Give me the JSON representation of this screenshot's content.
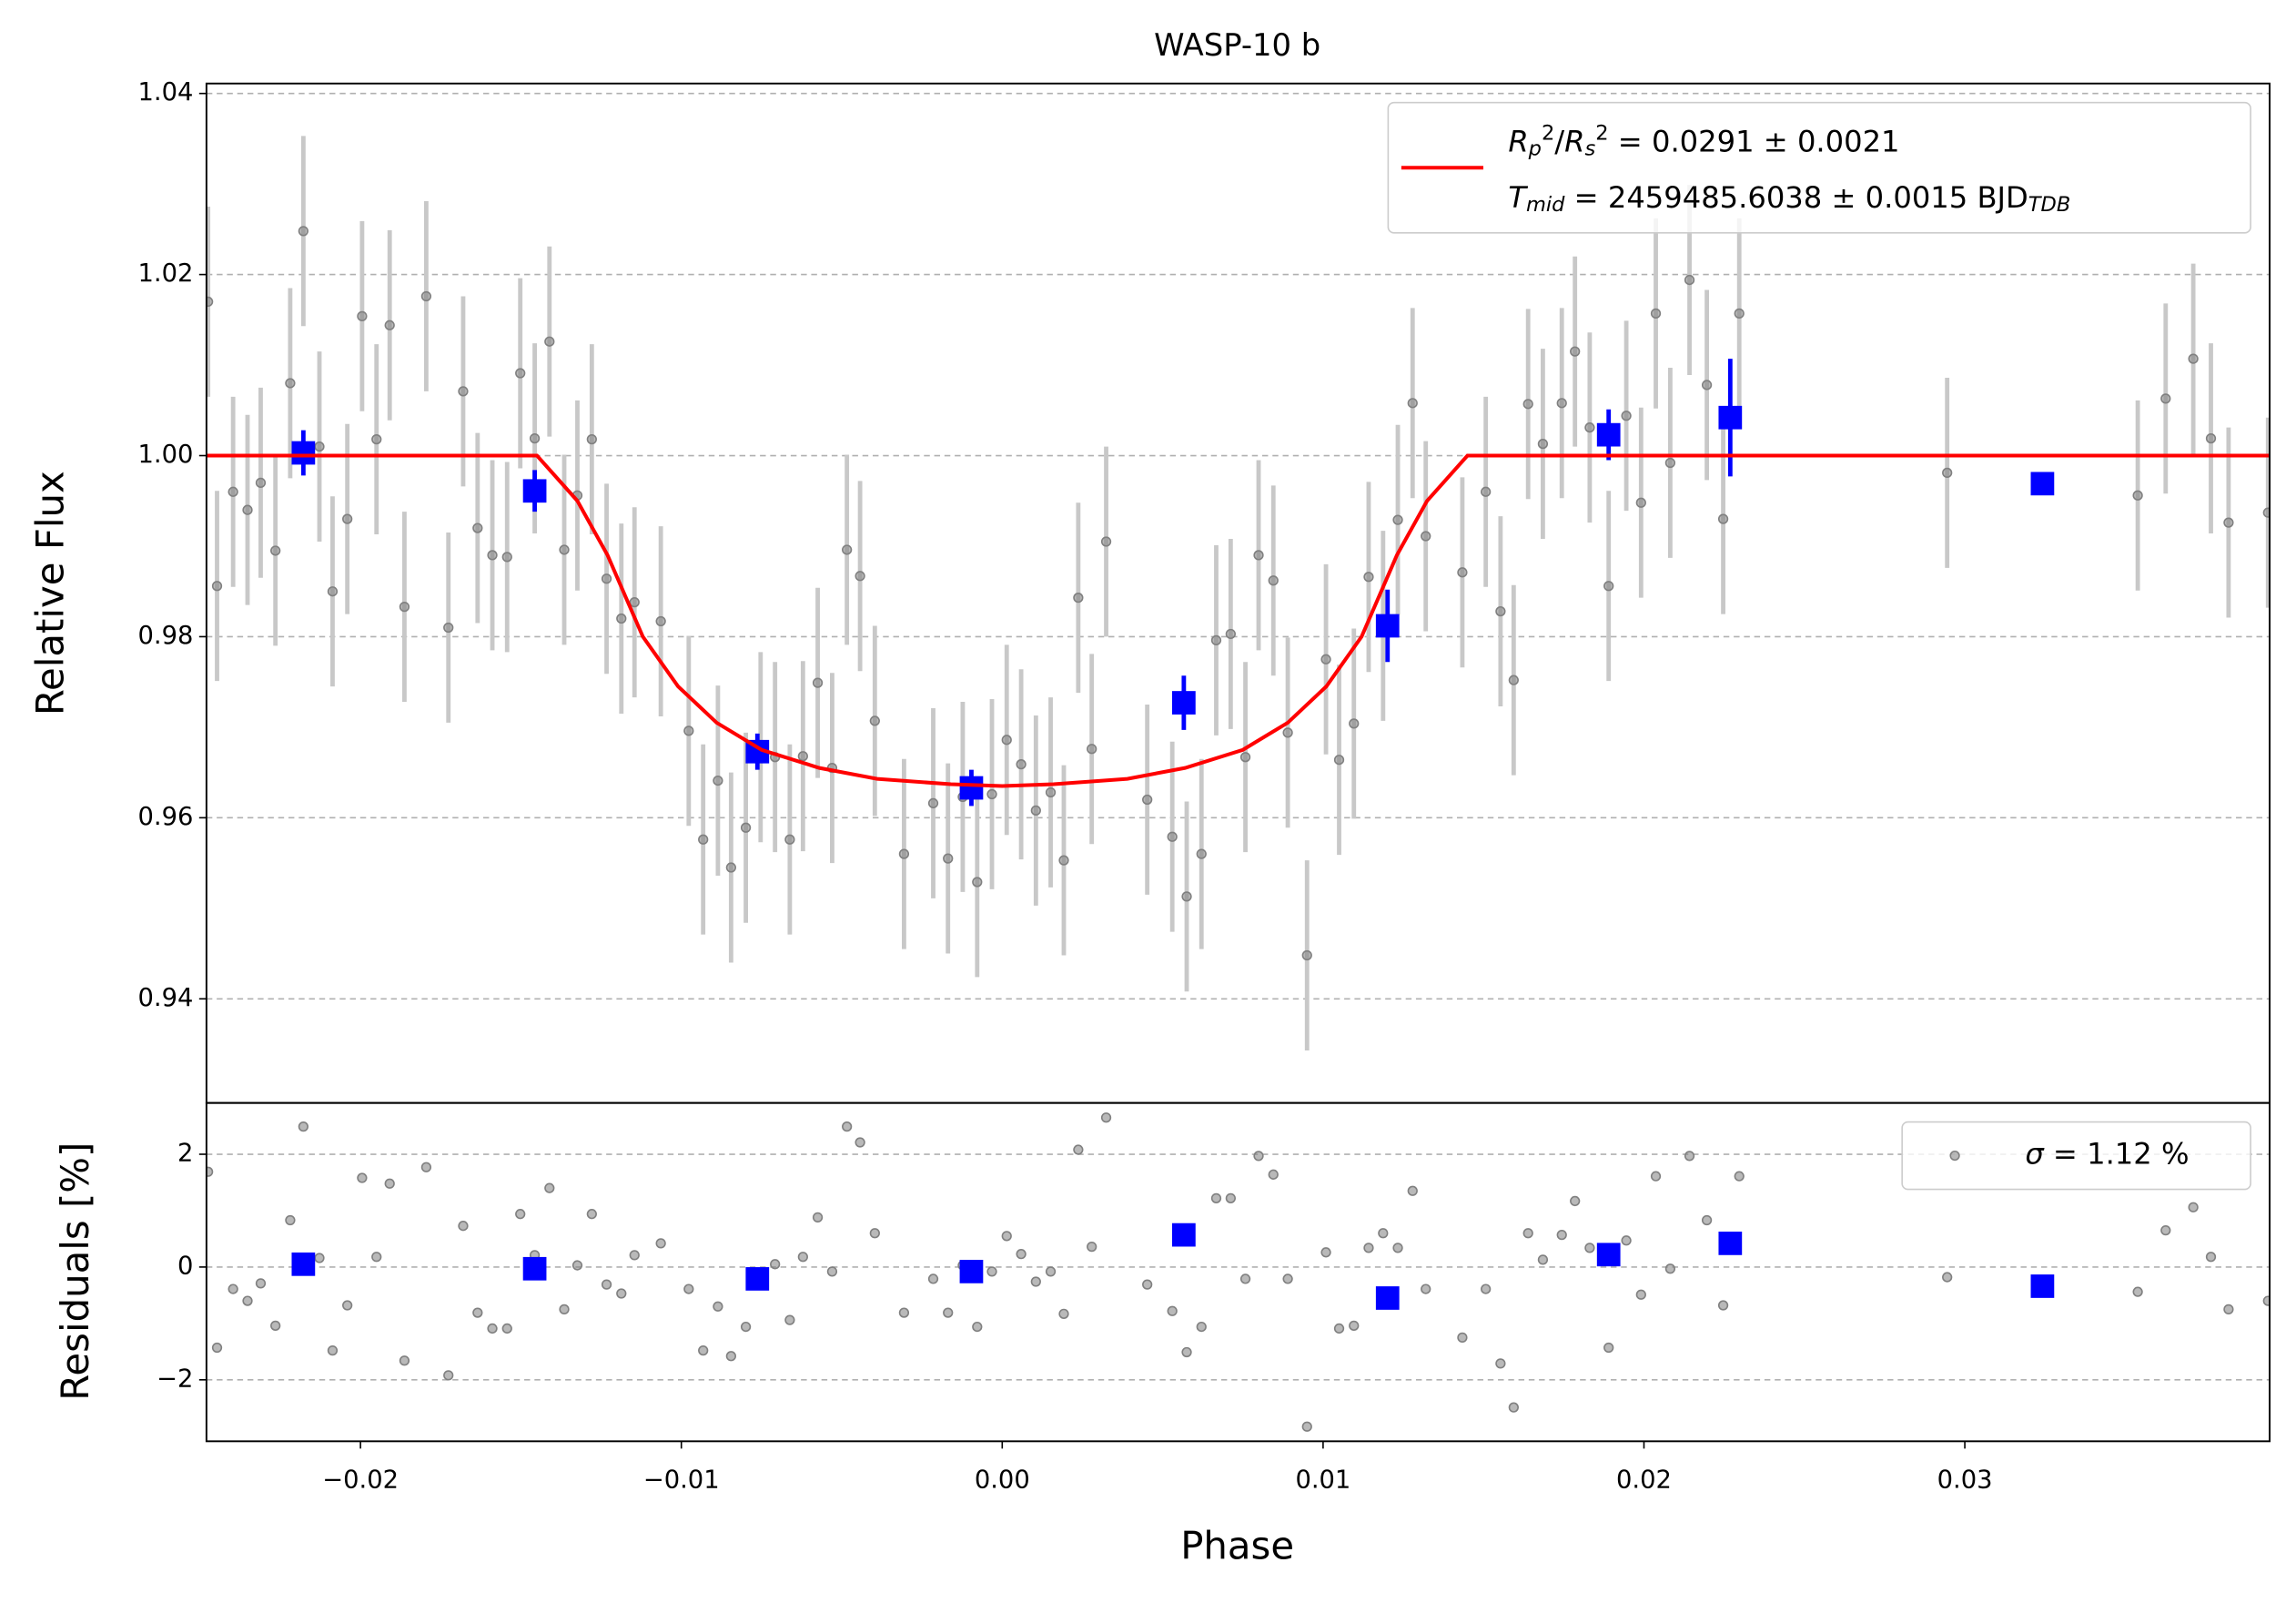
{
  "chart_data": [
    {
      "type": "errorbar",
      "title": "WASP-10 b",
      "ylabel": "Relative Flux",
      "xlim": [
        -0.0248,
        0.0395
      ],
      "ylim": [
        0.9285,
        1.0411
      ],
      "yticks": [
        0.94,
        0.96,
        0.98,
        {
          "value": 1,
          "label": "1.00"
        },
        1.02,
        1.04
      ],
      "grid": true,
      "legend": "upper right",
      "series": [
        {
          "kind": "points",
          "color": "#808080",
          "error_color": "#c8c8c8",
          "error": 0.0105,
          "x": [
            -0.02475,
            -0.02447,
            -0.02397,
            -0.02352,
            -0.02311,
            -0.02265,
            -0.02219,
            -0.02178,
            -0.02128,
            -0.02087,
            -0.02041,
            -0.01995,
            -0.0195,
            -0.01909,
            -0.01863,
            -0.01795,
            -0.01726,
            -0.0168,
            -0.01635,
            -0.01589,
            -0.01543,
            -0.01502,
            -0.01457,
            -0.01411,
            -0.01365,
            -0.01324,
            -0.01279,
            -0.01233,
            -0.01187,
            -0.01146,
            -0.01064,
            -0.00977,
            -0.00932,
            -0.00886,
            -0.00845,
            -0.00799,
            -0.00753,
            -0.00708,
            -0.00662,
            -0.00621,
            -0.00575,
            -0.0053,
            -0.00484,
            -0.00443,
            -0.00397,
            -0.00306,
            -0.00215,
            -0.00169,
            -0.00123,
            -0.00078,
            -0.00032,
            0.00014,
            0.00059,
            0.00105,
            0.00151,
            0.00192,
            0.00237,
            0.00279,
            0.00324,
            0.00452,
            0.0053,
            0.00575,
            0.00621,
            0.00667,
            0.00712,
            0.00758,
            0.00799,
            0.00845,
            0.0089,
            0.0095,
            0.01009,
            0.0105,
            0.01096,
            0.01142,
            0.01187,
            0.01233,
            0.01279,
            0.0132,
            0.01434,
            0.01507,
            0.01553,
            0.01594,
            0.01639,
            0.01685,
            0.01744,
            0.01785,
            0.01831,
            0.0189,
            0.01945,
            0.01991,
            0.02037,
            0.02082,
            0.02142,
            0.02196,
            0.02247,
            0.02297,
            0.02945,
            0.03539,
            0.03626,
            0.03712,
            0.03767,
            0.03822,
            0.03945
          ],
          "values": [
            1.017,
            0.9856,
            0.996,
            0.994,
            0.997,
            0.9895,
            1.008,
            1.0248,
            1.001,
            0.985,
            0.993,
            1.0154,
            1.0018,
            1.0144,
            0.9833,
            1.0176,
            0.981,
            1.0071,
            0.992,
            0.989,
            0.9888,
            1.0091,
            1.0019,
            1.0126,
            0.9896,
            0.9956,
            1.0018,
            0.9864,
            0.982,
            0.9838,
            0.9817,
            0.9696,
            0.9576,
            0.9641,
            0.9545,
            0.9589,
            0.9678,
            0.9667,
            0.9576,
            0.9668,
            0.9749,
            0.9655,
            0.9896,
            0.9867,
            0.9707,
            0.956,
            0.9616,
            0.9555,
            0.9623,
            0.9529,
            0.9626,
            0.9686,
            0.9659,
            0.9608,
            0.9628,
            0.9553,
            0.9843,
            0.9676,
            0.9905,
            0.962,
            0.9579,
            0.9513,
            0.956,
            0.9796,
            0.9803,
            0.9667,
            0.989,
            0.9862,
            0.9694,
            0.9448,
            0.9775,
            0.9664,
            0.9704,
            0.9866,
            0.9812,
            0.9929,
            1.0058,
            0.9911,
            0.9871,
            0.996,
            0.9828,
            0.9752,
            1.0057,
            1.0013,
            1.0058,
            1.0115,
            1.0031,
            0.9856,
            1.0044,
            0.9948,
            1.0157,
            0.9992,
            1.0194,
            1.0078,
            0.993,
            1.0157,
            0.9981,
            0.9956,
            1.0063,
            1.0107,
            1.0019,
            0.9926,
            0.9937
          ]
        },
        {
          "kind": "binned",
          "color": "#0000ff",
          "x": [
            -0.02178,
            -0.01457,
            -0.00763,
            -0.00096,
            0.00566,
            0.01201,
            0.0189,
            0.02269,
            0.03242
          ],
          "values": [
            1.0003,
            0.9961,
            0.9673,
            0.9633,
            0.9727,
            0.9812,
            1.0023,
            1.0042,
            0.9969
          ],
          "errors": [
            0.0025,
            0.0023,
            0.002,
            0.002,
            0.003,
            0.004,
            0.0028,
            0.0065,
            0
          ]
        },
        {
          "kind": "line",
          "color": "#ff0000",
          "name_parts": [
            {
              "t": "R",
              "s": "i"
            },
            {
              "t": "p",
              "s": "sub"
            },
            {
              "t": "2",
              "s": "sup"
            },
            {
              "t": "/",
              "s": ""
            },
            {
              "t": "R",
              "s": "i"
            },
            {
              "t": "s",
              "s": "sub"
            },
            {
              "t": "2",
              "s": "sup"
            },
            {
              "t": " = 0.0291 ± 0.0021",
              "s": ""
            }
          ],
          "name_parts_2": [
            {
              "t": "T",
              "s": "i"
            },
            {
              "t": "mid",
              "s": "sub"
            },
            {
              "t": " = 2459485.6038 ± 0.0015 BJD",
              "s": ""
            },
            {
              "t": "TDB",
              "s": "sub"
            }
          ],
          "x": [
            -0.0248,
            -0.0145,
            -0.01324,
            -0.0123,
            -0.0112,
            -0.0101,
            -0.0089,
            -0.0075,
            -0.0057,
            -0.0039,
            -0.0016,
            0,
            0.0016,
            0.0039,
            0.0057,
            0.0075,
            0.0089,
            0.0101,
            0.0112,
            0.0123,
            0.01324,
            0.0145,
            0.0395
          ],
          "values": [
            1,
            1,
            0.995,
            0.989,
            0.98,
            0.9745,
            0.9705,
            0.9675,
            0.9655,
            0.9643,
            0.9637,
            0.9635,
            0.9637,
            0.9643,
            0.9655,
            0.9675,
            0.9705,
            0.9745,
            0.98,
            0.989,
            0.995,
            1,
            1
          ]
        }
      ]
    },
    {
      "type": "scatter",
      "ylabel": "Residuals [%]",
      "xlabel": "Phase",
      "xlim": [
        -0.0248,
        0.0395
      ],
      "ylim": [
        -3.09,
        2.91
      ],
      "xticks": [
        {
          "value": -0.02,
          "label": "−0.02"
        },
        {
          "value": -0.01,
          "label": "−0.01"
        },
        {
          "value": 0,
          "label": "0.00"
        },
        0.01,
        0.02,
        0.03
      ],
      "yticks": [
        {
          "value": -2,
          "label": "−2"
        },
        0,
        2
      ],
      "grid": true,
      "legend": "upper right",
      "series": [
        {
          "kind": "points",
          "color": "#808080",
          "name_parts": [
            {
              "t": "σ",
              "s": "i"
            },
            {
              "t": " = 1.12 %",
              "s": ""
            }
          ],
          "x": [
            -0.02475,
            -0.02447,
            -0.02397,
            -0.02352,
            -0.02311,
            -0.02265,
            -0.02219,
            -0.02178,
            -0.02128,
            -0.02087,
            -0.02041,
            -0.01995,
            -0.0195,
            -0.01909,
            -0.01863,
            -0.01795,
            -0.01726,
            -0.0168,
            -0.01635,
            -0.01589,
            -0.01543,
            -0.01502,
            -0.01457,
            -0.01411,
            -0.01365,
            -0.01324,
            -0.01279,
            -0.01233,
            -0.01187,
            -0.01146,
            -0.01064,
            -0.00977,
            -0.00932,
            -0.00886,
            -0.00845,
            -0.00799,
            -0.00753,
            -0.00708,
            -0.00662,
            -0.00621,
            -0.00575,
            -0.0053,
            -0.00484,
            -0.00443,
            -0.00397,
            -0.00306,
            -0.00215,
            -0.00169,
            -0.00123,
            -0.00078,
            -0.00032,
            0.00014,
            0.00059,
            0.00105,
            0.00151,
            0.00192,
            0.00237,
            0.00279,
            0.00324,
            0.00452,
            0.0053,
            0.00575,
            0.00621,
            0.00667,
            0.00712,
            0.00758,
            0.00799,
            0.00845,
            0.0089,
            0.0095,
            0.01009,
            0.0105,
            0.01096,
            0.01142,
            0.01187,
            0.01233,
            0.01279,
            0.0132,
            0.01434,
            0.01507,
            0.01553,
            0.01594,
            0.01639,
            0.01685,
            0.01744,
            0.01785,
            0.01831,
            0.0189,
            0.01945,
            0.01991,
            0.02037,
            0.02082,
            0.02142,
            0.02196,
            0.02247,
            0.02297,
            0.02945,
            0.03539,
            0.03626,
            0.03712,
            0.03767,
            0.03822,
            0.03945
          ],
          "values": [
            1.69,
            -1.43,
            -0.39,
            -0.6,
            -0.29,
            -1.04,
            0.83,
            2.49,
            0.16,
            -1.48,
            -0.68,
            1.58,
            0.18,
            1.48,
            -1.66,
            1.77,
            -1.92,
            0.73,
            -0.81,
            -1.09,
            -1.09,
            0.94,
            0.21,
            1.4,
            -0.75,
            0.03,
            0.94,
            -0.31,
            -0.47,
            0.21,
            0.42,
            -0.39,
            -1.48,
            -0.7,
            -1.58,
            -1.06,
            -0.21,
            0.05,
            -0.94,
            0.18,
            0.88,
            -0.08,
            2.49,
            2.21,
            0.6,
            -0.81,
            -0.21,
            -0.81,
            0.03,
            -1.06,
            -0.08,
            0.55,
            0.23,
            -0.26,
            -0.08,
            -0.83,
            2.08,
            0.36,
            2.65,
            -0.31,
            -0.78,
            -1.51,
            -1.06,
            1.22,
            1.22,
            -0.21,
            1.97,
            1.64,
            -0.21,
            -2.83,
            0.26,
            -1.09,
            -1.04,
            0.34,
            0.6,
            0.34,
            1.35,
            -0.39,
            -1.25,
            -0.39,
            -1.71,
            -2.49,
            0.6,
            0.13,
            0.57,
            1.17,
            0.34,
            -1.43,
            0.47,
            -0.49,
            1.61,
            -0.03,
            1.97,
            0.83,
            -0.68,
            1.61,
            -0.18,
            -0.44,
            0.65,
            1.06,
            0.18,
            -0.75,
            -0.6
          ]
        },
        {
          "kind": "binned",
          "color": "#0000ff",
          "x": [
            -0.02178,
            -0.01457,
            -0.00763,
            -0.00096,
            0.00566,
            0.01201,
            0.0189,
            0.02269,
            0.03242
          ],
          "values": [
            0.05,
            -0.03,
            -0.21,
            -0.08,
            0.57,
            -0.55,
            0.22,
            0.42,
            -0.34
          ]
        }
      ]
    }
  ]
}
